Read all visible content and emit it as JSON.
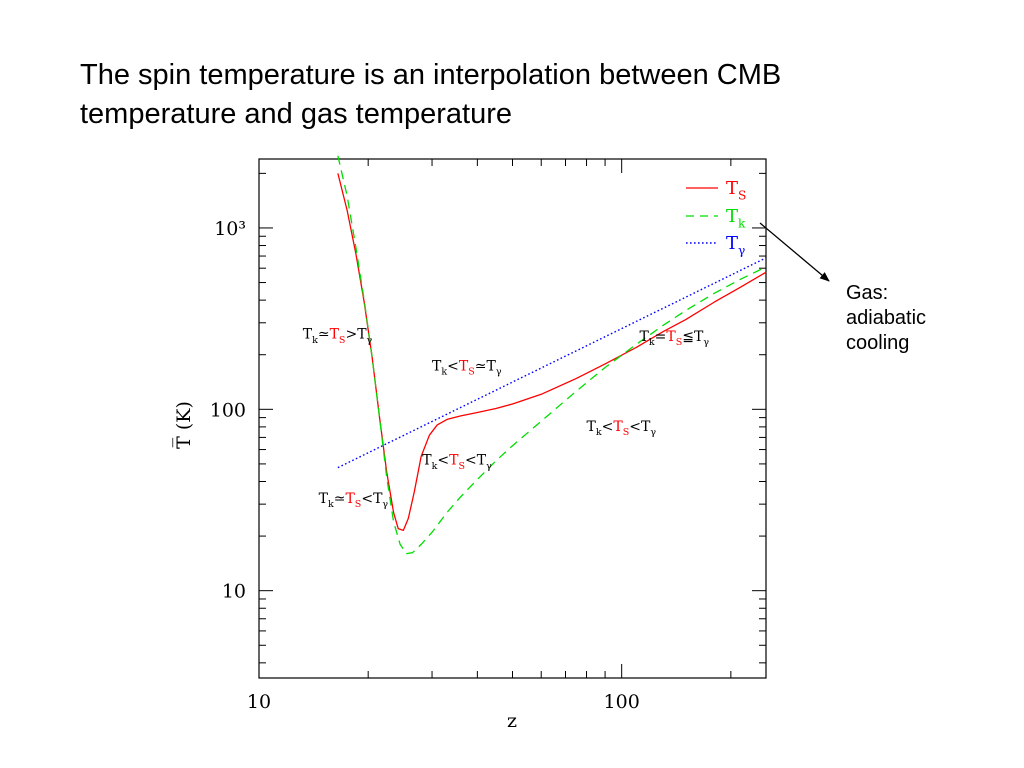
{
  "slide": {
    "title_line1": "The spin temperature is an interpolation between CMB",
    "title_line2": "temperature and gas temperature"
  },
  "callout": {
    "line1": "Gas:",
    "line2": "adiabatic",
    "line3": "cooling"
  },
  "chart_data": {
    "type": "line",
    "xlabel": "z",
    "ylabel": "T̅ (K)",
    "xscale": "log",
    "yscale": "log",
    "xlim": [
      10,
      250
    ],
    "ylim": [
      3.3,
      2400
    ],
    "xticks": [
      {
        "value": 10,
        "label": "10"
      },
      {
        "value": 100,
        "label": "100"
      }
    ],
    "yticks": [
      {
        "value": 10,
        "label": "10"
      },
      {
        "value": 100,
        "label": "100"
      },
      {
        "value": 1000,
        "label": "10³"
      }
    ],
    "legend_position": "top-right",
    "colors": {
      "Ts": "#ff0000",
      "Tk": "#00dd00",
      "Tgamma": "#0000ff"
    },
    "series": [
      {
        "key": "Ts",
        "name": "T_S",
        "style": "solid",
        "color": "#ff0000",
        "x": [
          16.5,
          17.5,
          18.5,
          19.5,
          20.5,
          21.5,
          22.5,
          23.5,
          24.2,
          25.0,
          25.8,
          26.8,
          28.0,
          29.5,
          31.0,
          33.0,
          36.0,
          40.0,
          45.0,
          50.0,
          60.0,
          75.0,
          90.0,
          110.0,
          130.0,
          150.0,
          180.0,
          210.0,
          250.0
        ],
        "y": [
          2000,
          1250,
          720,
          390,
          195,
          90,
          45,
          27,
          22,
          21.5,
          25,
          35,
          55,
          72,
          82,
          88,
          92,
          96,
          101,
          107,
          121,
          148,
          178,
          220,
          268,
          312,
          390,
          465,
          570
        ]
      },
      {
        "key": "Tk",
        "name": "T_k",
        "style": "dashed",
        "color": "#00dd00",
        "x": [
          16.5,
          17.5,
          18.5,
          19.5,
          20.5,
          21.5,
          22.5,
          23.5,
          24.5,
          25.5,
          26.5,
          28.0,
          30.0,
          33.0,
          36.0,
          40.0,
          45.0,
          50.0,
          60.0,
          75.0,
          90.0,
          110.0,
          130.0,
          150.0,
          180.0,
          210.0,
          250.0
        ],
        "y": [
          2500,
          1500,
          780,
          400,
          195,
          90,
          42,
          24,
          18,
          16,
          16.2,
          18,
          21,
          27,
          33,
          41,
          52,
          63,
          86,
          126,
          170,
          229,
          290,
          350,
          436,
          515,
          610
        ]
      },
      {
        "key": "Tgamma",
        "name": "T_γ",
        "style": "dotted",
        "color": "#0000ff",
        "x": [
          16.5,
          250.0
        ],
        "y": [
          47.7,
          684
        ]
      }
    ],
    "annotations": [
      {
        "segments": [
          [
            "T",
            "#000"
          ],
          [
            "k",
            "#000",
            "sub"
          ],
          [
            "≃",
            "#000"
          ],
          [
            "T",
            "#ff0000"
          ],
          [
            "S",
            "#ff0000",
            "sub"
          ],
          [
            ">",
            "#000"
          ],
          [
            "T",
            "#000"
          ],
          [
            "γ",
            "#000",
            "sub"
          ]
        ],
        "x": 13.2,
        "y": 245
      },
      {
        "segments": [
          [
            "T",
            "#000"
          ],
          [
            "k",
            "#000",
            "sub"
          ],
          [
            "<",
            "#000"
          ],
          [
            "T",
            "#ff0000"
          ],
          [
            "S",
            "#ff0000",
            "sub"
          ],
          [
            "≃",
            "#000"
          ],
          [
            "T",
            "#000"
          ],
          [
            "γ",
            "#000",
            "sub"
          ]
        ],
        "x": 30.0,
        "y": 164
      },
      {
        "segments": [
          [
            "T",
            "#000"
          ],
          [
            "k",
            "#000",
            "sub"
          ],
          [
            "=",
            "#000"
          ],
          [
            "T",
            "#ff0000"
          ],
          [
            "S",
            "#ff0000",
            "sub"
          ],
          [
            "≦",
            "#000"
          ],
          [
            "T",
            "#000"
          ],
          [
            "γ",
            "#000",
            "sub"
          ]
        ],
        "x": 112.0,
        "y": 238
      },
      {
        "segments": [
          [
            "T",
            "#000"
          ],
          [
            "k",
            "#000",
            "sub"
          ],
          [
            "<",
            "#000"
          ],
          [
            "T",
            "#ff0000"
          ],
          [
            "S",
            "#ff0000",
            "sub"
          ],
          [
            "<",
            "#000"
          ],
          [
            "T",
            "#000"
          ],
          [
            "γ",
            "#000",
            "sub"
          ]
        ],
        "x": 80.0,
        "y": 76
      },
      {
        "segments": [
          [
            "T",
            "#000"
          ],
          [
            "k",
            "#000",
            "sub"
          ],
          [
            "<",
            "#000"
          ],
          [
            "T",
            "#ff0000"
          ],
          [
            "S",
            "#ff0000",
            "sub"
          ],
          [
            "<",
            "#000"
          ],
          [
            "T",
            "#000"
          ],
          [
            "γ",
            "#000",
            "sub"
          ]
        ],
        "x": 28.2,
        "y": 49.5
      },
      {
        "segments": [
          [
            "T",
            "#000"
          ],
          [
            "k",
            "#000",
            "sub"
          ],
          [
            "≃",
            "#000"
          ],
          [
            "T",
            "#ff0000"
          ],
          [
            "S",
            "#ff0000",
            "sub"
          ],
          [
            "<",
            "#000"
          ],
          [
            "T",
            "#000"
          ],
          [
            "γ",
            "#000",
            "sub"
          ]
        ],
        "x": 14.6,
        "y": 30.5
      }
    ]
  }
}
